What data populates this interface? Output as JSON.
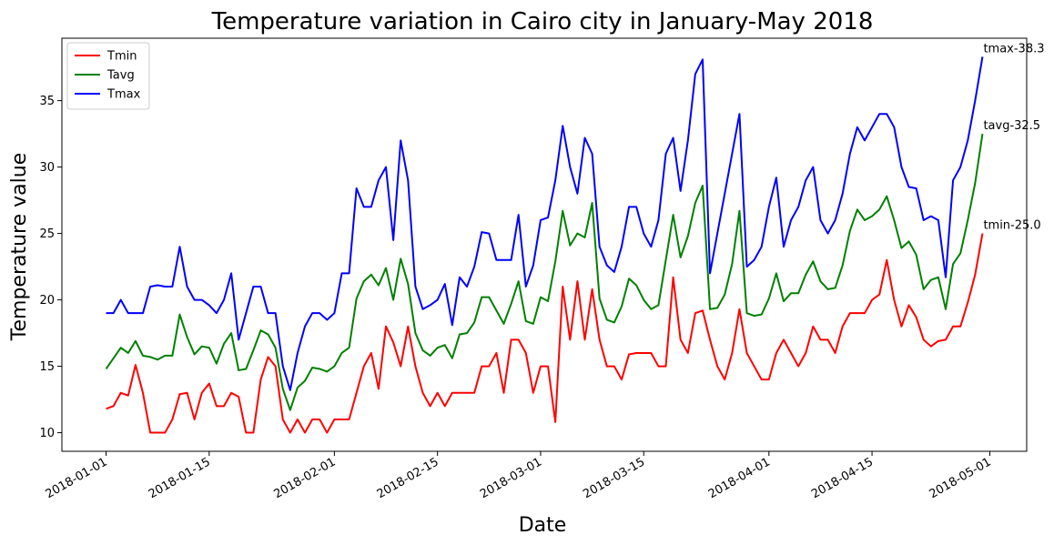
{
  "chart_data": {
    "type": "line",
    "title": "Temperature variation in Cairo city in January-May 2018",
    "xlabel": "Date",
    "ylabel": "Temperature value",
    "x_start": "2018-01-01",
    "x_end": "2018-04-30",
    "xlim": [
      "2017-12-26",
      "2018-05-06"
    ],
    "ylim": [
      8.6,
      39.7
    ],
    "x_ticks": [
      "2018-01-01",
      "2018-01-15",
      "2018-02-01",
      "2018-02-15",
      "2018-03-01",
      "2018-03-15",
      "2018-04-01",
      "2018-04-15",
      "2018-05-01"
    ],
    "y_ticks": [
      10,
      15,
      20,
      25,
      30,
      35
    ],
    "grid": false,
    "legend_position": "upper-left",
    "series": [
      {
        "name": "Tmin",
        "color": "#ff0000",
        "values": [
          11.8,
          12,
          13,
          12.8,
          15.1,
          13,
          10,
          10,
          10,
          11,
          12.9,
          13,
          11,
          13,
          13.7,
          12,
          12,
          13,
          12.7,
          10,
          10,
          14,
          15.7,
          15,
          11,
          10,
          11,
          10,
          11,
          11,
          10,
          11,
          11,
          11,
          13,
          15,
          16,
          13.3,
          18,
          16.8,
          15,
          18,
          15,
          13,
          12,
          13,
          12,
          13,
          13,
          13,
          13,
          15,
          15,
          16,
          13,
          17,
          17,
          16,
          13,
          15,
          15,
          10.8,
          21,
          17,
          21.4,
          17,
          20.8,
          17,
          15,
          15,
          14,
          15.9,
          16,
          16,
          16,
          15,
          15,
          21.7,
          17,
          16,
          19,
          19.2,
          17,
          15,
          14,
          16,
          19.3,
          16,
          15,
          14,
          14,
          16,
          17,
          16,
          15,
          16,
          18,
          17,
          17,
          16,
          18,
          19,
          19,
          19,
          20,
          20.4,
          23,
          20,
          18,
          19.6,
          18.7,
          17,
          16.5,
          16.9,
          17,
          18,
          18,
          19.8,
          21.9,
          25
        ]
      },
      {
        "name": "Tavg",
        "color": "#008000",
        "values": [
          14.8,
          15.6,
          16.4,
          16,
          16.9,
          15.8,
          15.7,
          15.5,
          15.8,
          15.8,
          18.9,
          17.2,
          15.9,
          16.5,
          16.4,
          15.2,
          16.7,
          17.5,
          14.7,
          14.8,
          16.2,
          17.7,
          17.4,
          16.4,
          13.3,
          11.7,
          13.4,
          13.9,
          14.9,
          14.8,
          14.6,
          15,
          16,
          16.4,
          20.1,
          21.4,
          21.9,
          21.1,
          22.4,
          20,
          23.1,
          21.2,
          17.5,
          16.2,
          15.8,
          16.4,
          16.6,
          15.6,
          17.4,
          17.5,
          18.3,
          20.2,
          20.2,
          19.2,
          18.2,
          19.7,
          21.4,
          18.4,
          18.2,
          20.2,
          19.9,
          22.9,
          26.7,
          24.1,
          25,
          24.7,
          27.3,
          20.1,
          18.5,
          18.3,
          19.5,
          21.6,
          21.1,
          20,
          19.3,
          19.6,
          23,
          26.4,
          23.2,
          24.8,
          27.3,
          28.6,
          19.3,
          19.4,
          20.4,
          22.7,
          26.7,
          19,
          18.8,
          18.9,
          20.1,
          22,
          19.9,
          20.5,
          20.5,
          21.9,
          22.9,
          21.4,
          20.8,
          20.9,
          22.6,
          25.2,
          26.8,
          26,
          26.3,
          26.8,
          27.8,
          26,
          23.9,
          24.4,
          23.4,
          20.8,
          21.5,
          21.7,
          19.3,
          22.7,
          23.5,
          26,
          28.8,
          32.5
        ]
      },
      {
        "name": "Tmax",
        "color": "#0000ff",
        "values": [
          19,
          19,
          20,
          19,
          19,
          19,
          21,
          21.1,
          21,
          21,
          24,
          21,
          20,
          20,
          19.6,
          19,
          20,
          22,
          17,
          19,
          21,
          21,
          19,
          19,
          15,
          13.2,
          16,
          18,
          19,
          19,
          18.5,
          19,
          22,
          22,
          28.4,
          27,
          27,
          29,
          30,
          24.5,
          32,
          29,
          21,
          19.3,
          19.6,
          20,
          21.2,
          18.1,
          21.7,
          21,
          22.5,
          25.1,
          25,
          23,
          23,
          23,
          26.4,
          21,
          22.6,
          26,
          26.2,
          29,
          33.1,
          30,
          28,
          32.2,
          31,
          24,
          22.6,
          22.1,
          24,
          27,
          27,
          25,
          24,
          26,
          31,
          32.2,
          28.2,
          32,
          37,
          38.1,
          22,
          25,
          28,
          31,
          34,
          22.5,
          23,
          24,
          27,
          29.2,
          24,
          26,
          27,
          29,
          30,
          26,
          25,
          26,
          28,
          31,
          33,
          32,
          33,
          34,
          34,
          33,
          30,
          28.5,
          28.4,
          26,
          26.3,
          26,
          21.7,
          29,
          30,
          32,
          35,
          38.3
        ]
      }
    ],
    "annotations": [
      {
        "series": "Tmax",
        "text": "tmax-38.3"
      },
      {
        "series": "Tavg",
        "text": "tavg-32.5"
      },
      {
        "series": "Tmin",
        "text": "tmin-25.0"
      }
    ]
  }
}
